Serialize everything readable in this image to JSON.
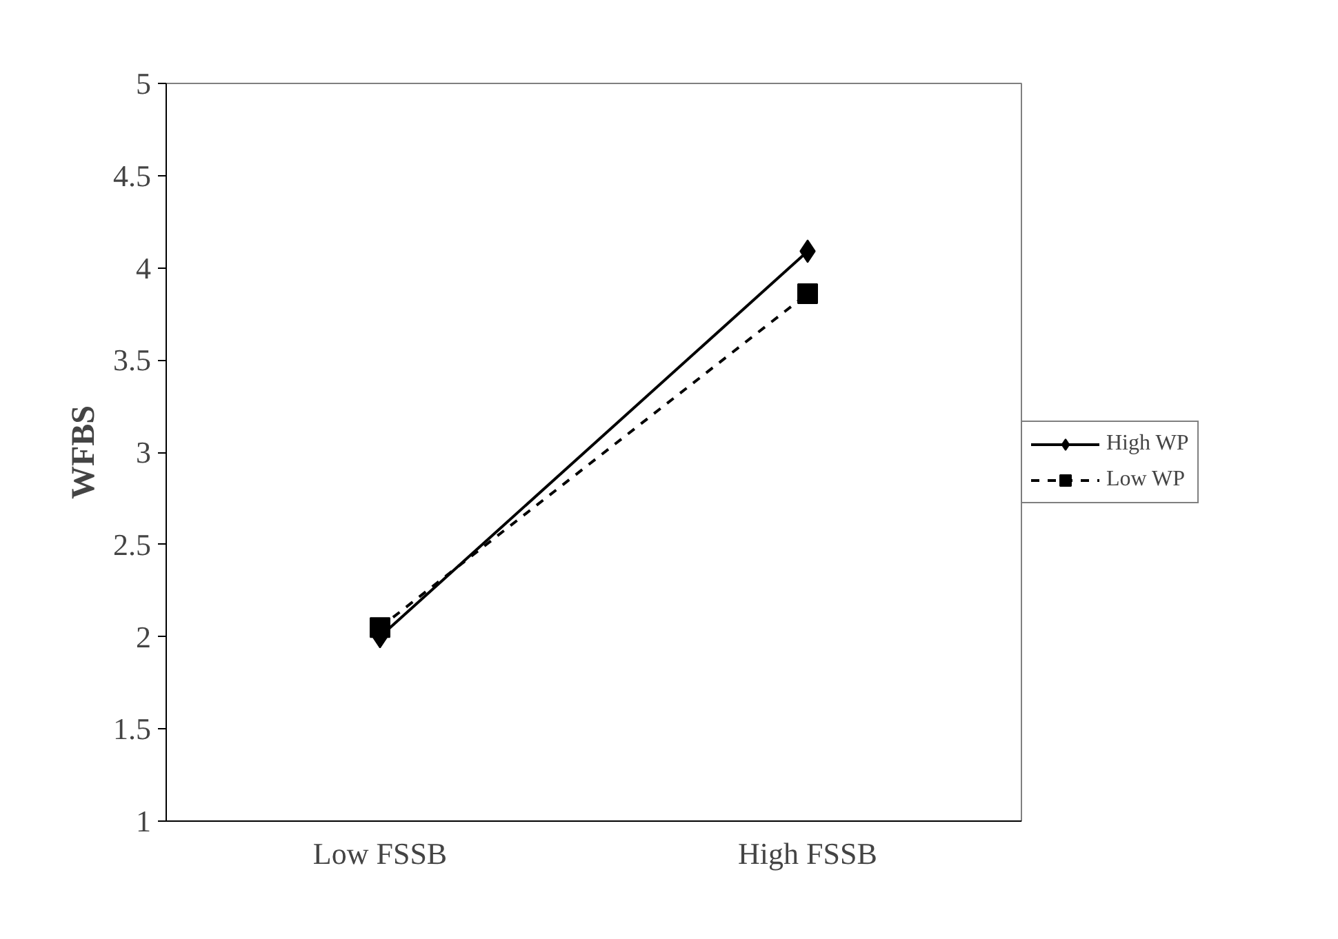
{
  "chart_data": {
    "type": "line",
    "ylabel": "WFBS",
    "categories": [
      "Low FSSB",
      "High FSSB"
    ],
    "series": [
      {
        "name": "High WP",
        "color": "#000000",
        "values": [
          2.0,
          4.09
        ],
        "marker": "diamond",
        "line_style": "solid"
      },
      {
        "name": "Low WP",
        "color": "#000000",
        "values": [
          2.05,
          3.86
        ],
        "marker": "square",
        "line_style": "dashed"
      }
    ],
    "ylim": [
      1,
      5
    ],
    "yticks": [
      1,
      1.5,
      2,
      2.5,
      3,
      3.5,
      4,
      4.5,
      5
    ],
    "grid": false,
    "legend": "right"
  }
}
